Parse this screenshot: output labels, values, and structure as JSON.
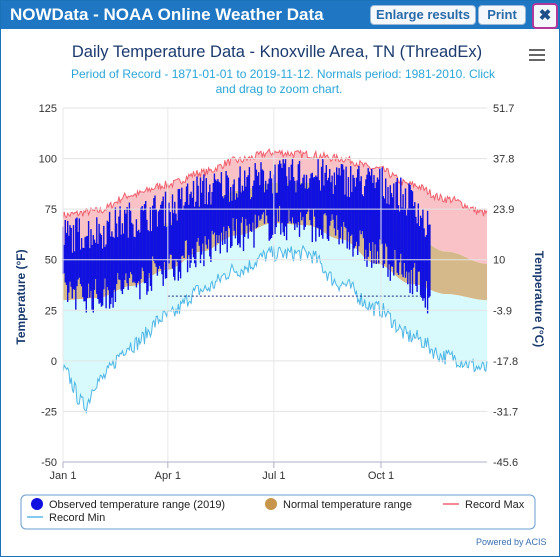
{
  "window": {
    "title": "NOWData - NOAA Online Weather Data",
    "enlarge_label": "Enlarge results",
    "print_label": "Print",
    "close_label": "✖"
  },
  "chart_data": {
    "type": "area",
    "title": "Daily Temperature Data - Knoxville Area, TN (ThreadEx)",
    "subtitle": "Period of Record - 1871-01-01 to 2019-11-12. Normals period: 1981-2010. Click and drag to zoom chart.",
    "ylabel": "Temperature (°F)",
    "ylabel_right": "Temperature (°C)",
    "ylim": [
      -50,
      125
    ],
    "y_ticks": [
      125,
      100,
      75,
      50,
      25,
      0,
      -25,
      -50
    ],
    "y_ticks_right": [
      "51.7",
      "37.8",
      "23.9",
      "10",
      "-3.9",
      "-17.8",
      "-31.7",
      "-45.6"
    ],
    "x_ticks": [
      "Jan 1",
      "Apr 1",
      "Jul 1",
      "Oct 1"
    ],
    "x_tick_days": [
      1,
      91,
      182,
      274
    ],
    "days_in_year": 365,
    "freezing_line_f": 32,
    "legend": [
      {
        "label": "Observed temperature range (2019)",
        "color": "#1010e0",
        "kind": "dot"
      },
      {
        "label": "Normal temperature range",
        "color": "#c8964a",
        "kind": "dot"
      },
      {
        "label": "Record Max",
        "color": "#f06070",
        "kind": "line"
      },
      {
        "label": "Record Min",
        "color": "#5ab8e8",
        "kind": "line"
      }
    ],
    "series": [
      {
        "name": "Record Max",
        "anchors_day": [
          1,
          30,
          60,
          90,
          120,
          150,
          182,
          210,
          240,
          270,
          300,
          330,
          365
        ],
        "values": [
          72,
          74,
          82,
          87,
          93,
          99,
          103,
          102,
          100,
          95,
          87,
          80,
          73
        ]
      },
      {
        "name": "Normal High",
        "anchors_day": [
          1,
          30,
          60,
          90,
          120,
          150,
          182,
          210,
          240,
          270,
          300,
          330,
          365
        ],
        "values": [
          48,
          50,
          58,
          68,
          77,
          84,
          88,
          88,
          82,
          72,
          62,
          54,
          48
        ]
      },
      {
        "name": "Normal Low",
        "anchors_day": [
          1,
          30,
          60,
          90,
          120,
          150,
          182,
          210,
          240,
          270,
          300,
          330,
          365
        ],
        "values": [
          30,
          31,
          37,
          45,
          54,
          62,
          68,
          67,
          60,
          48,
          38,
          33,
          30
        ]
      },
      {
        "name": "Record Min",
        "anchors_day": [
          1,
          20,
          30,
          60,
          90,
          120,
          150,
          182,
          210,
          240,
          270,
          300,
          330,
          365
        ],
        "values": [
          -5,
          -22,
          -10,
          8,
          22,
          35,
          45,
          53,
          53,
          38,
          26,
          12,
          2,
          -4
        ]
      }
    ],
    "observed_2019": {
      "name": "Observed temperature range (2019)",
      "last_day": 316,
      "anchors_day": [
        1,
        30,
        60,
        90,
        120,
        150,
        182,
        210,
        240,
        270,
        300,
        316
      ],
      "high": [
        62,
        64,
        70,
        75,
        84,
        88,
        91,
        92,
        90,
        88,
        80,
        65
      ],
      "low": [
        35,
        32,
        38,
        46,
        55,
        62,
        68,
        68,
        63,
        52,
        42,
        30
      ]
    }
  },
  "footer": {
    "powered_by": "Powered by ACIS"
  }
}
